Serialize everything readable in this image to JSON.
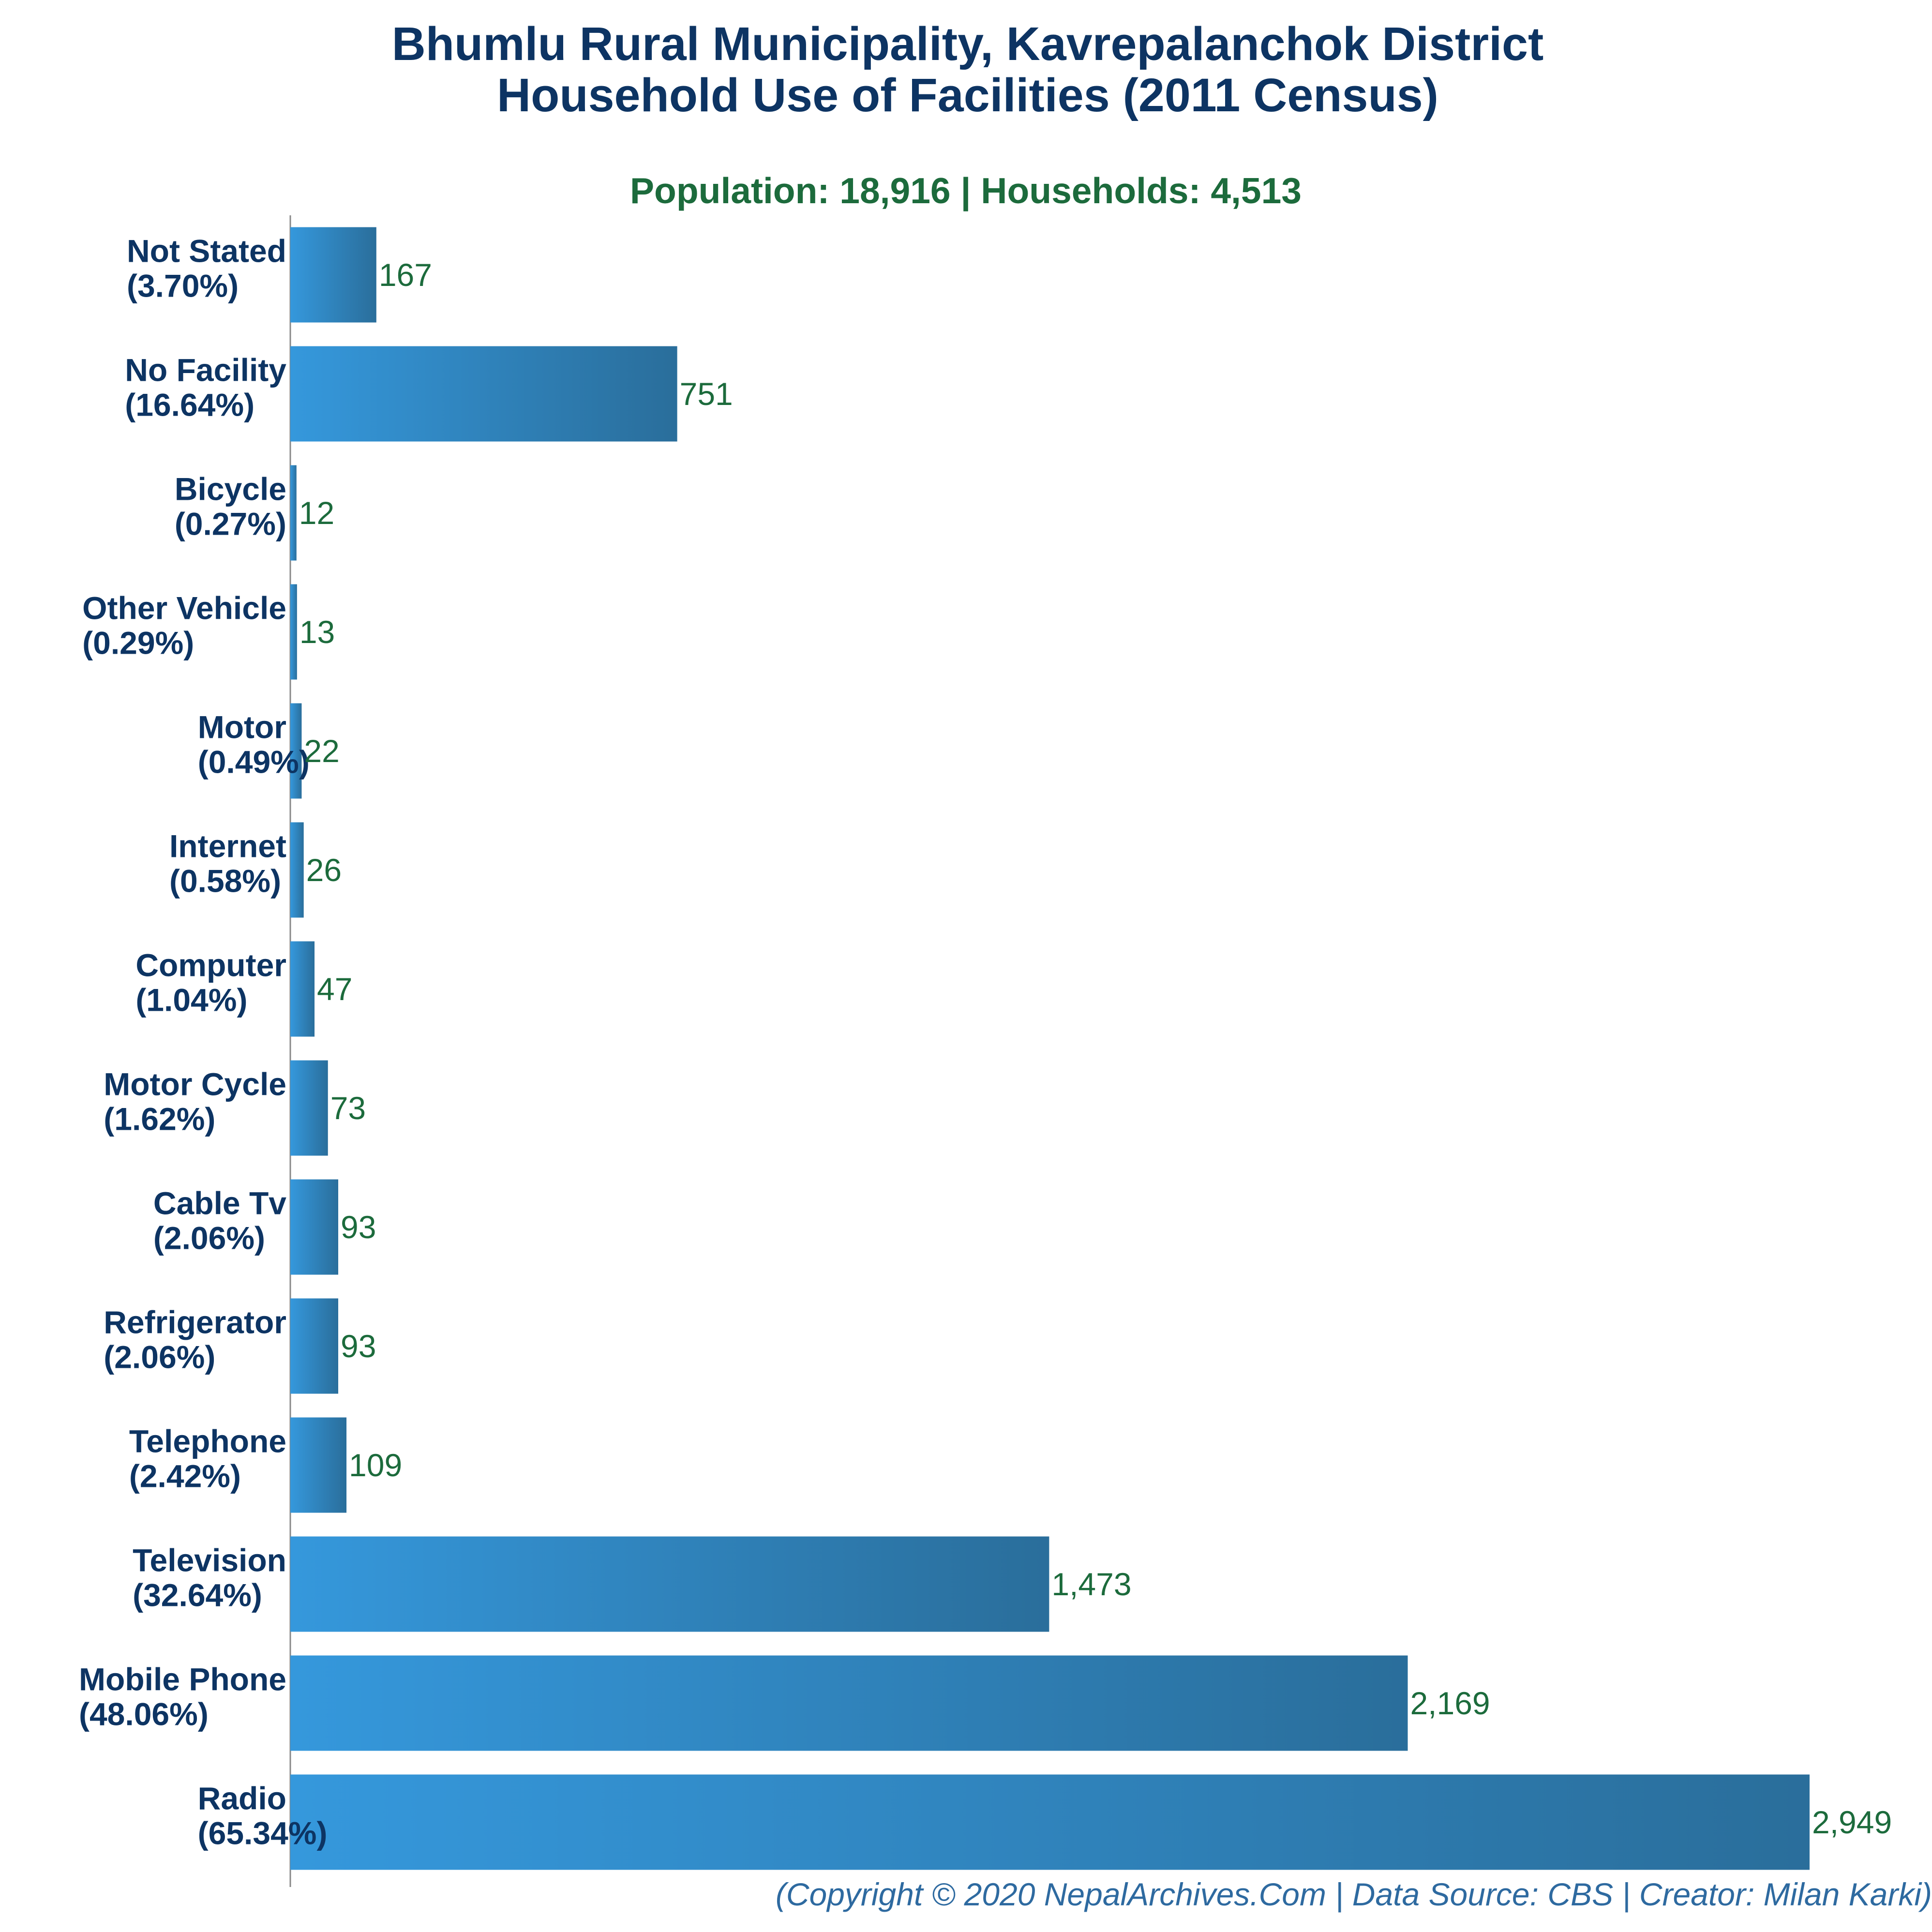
{
  "title_line1": "Bhumlu Rural Municipality, Kavrepalanchok District",
  "title_line2": "Household Use of Facilities (2011 Census)",
  "subtitle": "Population: 18,916 | Households: 4,513",
  "footer": "(Copyright © 2020 NepalArchives.Com | Data Source: CBS | Creator: Milan Karki)",
  "colors": {
    "title": "#0d3463",
    "subtitle": "#1c6b3c",
    "value_label": "#1c6b3c",
    "bar_gradient_start": "#3598dc",
    "bar_gradient_end": "#2a6e9b",
    "footer": "#2e6aa0",
    "axis": "#888888"
  },
  "chart_data": {
    "type": "bar",
    "orientation": "horizontal",
    "categories": [
      "Not Stated",
      "No Facility",
      "Bicycle",
      "Other Vehicle",
      "Motor",
      "Internet",
      "Computer",
      "Motor Cycle",
      "Cable Tv",
      "Refrigerator",
      "Telephone",
      "Television",
      "Mobile Phone",
      "Radio"
    ],
    "percent_labels": [
      "(3.70%)",
      "(16.64%)",
      "(0.27%)",
      "(0.29%)",
      "(0.49%)",
      "(0.58%)",
      "(1.04%)",
      "(1.62%)",
      "(2.06%)",
      "(2.06%)",
      "(2.42%)",
      "(32.64%)",
      "(48.06%)",
      "(65.34%)"
    ],
    "values": [
      167,
      751,
      12,
      13,
      22,
      26,
      47,
      73,
      93,
      93,
      109,
      1473,
      2169,
      2949
    ],
    "value_labels": [
      "167",
      "751",
      "12",
      "13",
      "22",
      "26",
      "47",
      "73",
      "93",
      "93",
      "109",
      "1,473",
      "2,169",
      "2,949"
    ],
    "xlim": [
      0,
      2949
    ],
    "grid": false,
    "legend": "none"
  }
}
